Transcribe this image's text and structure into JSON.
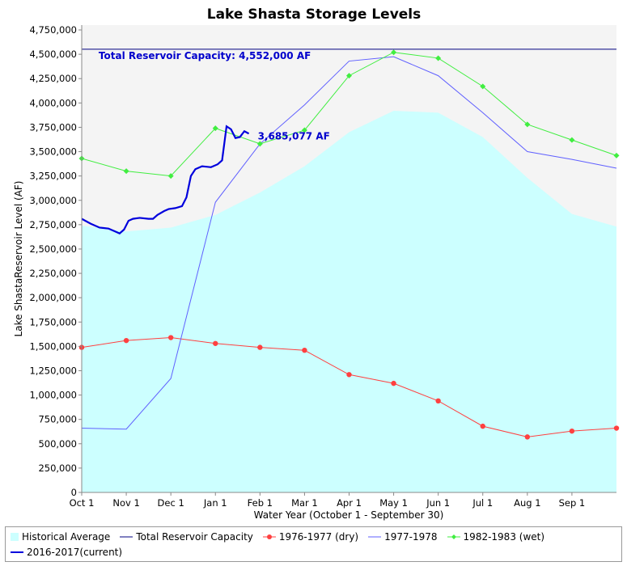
{
  "chart_data": {
    "type": "line",
    "title": "Lake Shasta Storage Levels",
    "xlabel": "Water Year (October 1 - September 30)",
    "ylabel": "Lake ShastaReservoir Level (AF)",
    "ylim": [
      0,
      4800000
    ],
    "xlim": [
      0,
      12
    ],
    "x_ticks": [
      {
        "label": "Oct 1",
        "x": 0
      },
      {
        "label": "Nov 1",
        "x": 1
      },
      {
        "label": "Dec 1",
        "x": 2
      },
      {
        "label": "Jan 1",
        "x": 3
      },
      {
        "label": "Feb 1",
        "x": 4
      },
      {
        "label": "Mar 1",
        "x": 5
      },
      {
        "label": "Apr 1",
        "x": 6
      },
      {
        "label": "May 1",
        "x": 7
      },
      {
        "label": "Jun 1",
        "x": 8
      },
      {
        "label": "Jul 1",
        "x": 9
      },
      {
        "label": "Aug 1",
        "x": 10
      },
      {
        "label": "Sep 1",
        "x": 11
      }
    ],
    "y_ticks": [
      {
        "label": "0",
        "v": 0
      },
      {
        "label": "250,000",
        "v": 250000
      },
      {
        "label": "500,000",
        "v": 500000
      },
      {
        "label": "750,000",
        "v": 750000
      },
      {
        "label": "1,000,000",
        "v": 1000000
      },
      {
        "label": "1,250,000",
        "v": 1250000
      },
      {
        "label": "1,500,000",
        "v": 1500000
      },
      {
        "label": "1,750,000",
        "v": 1750000
      },
      {
        "label": "2,000,000",
        "v": 2000000
      },
      {
        "label": "2,250,000",
        "v": 2250000
      },
      {
        "label": "2,500,000",
        "v": 2500000
      },
      {
        "label": "2,750,000",
        "v": 2750000
      },
      {
        "label": "3,000,000",
        "v": 3000000
      },
      {
        "label": "3,250,000",
        "v": 3250000
      },
      {
        "label": "3,500,000",
        "v": 3500000
      },
      {
        "label": "3,750,000",
        "v": 3750000
      },
      {
        "label": "4,000,000",
        "v": 4000000
      },
      {
        "label": "4,250,000",
        "v": 4250000
      },
      {
        "label": "4,500,000",
        "v": 4500000
      },
      {
        "label": "4,750,000",
        "v": 4750000
      }
    ],
    "grid": false,
    "legend_position": "bottom",
    "annotations": [
      {
        "text": "Total Reservoir Capacity: 4,552,000 AF",
        "x": 0.38,
        "y": 4450000
      },
      {
        "text": "3,685,077 AF",
        "x": 3.95,
        "y": 3625000
      }
    ],
    "series": [
      {
        "name": "Historical Average",
        "kind": "area",
        "color": "#ccffff",
        "points": [
          [
            0,
            2740000
          ],
          [
            1,
            2680000
          ],
          [
            2,
            2720000
          ],
          [
            3,
            2850000
          ],
          [
            4,
            3080000
          ],
          [
            5,
            3350000
          ],
          [
            6,
            3700000
          ],
          [
            7,
            3920000
          ],
          [
            8,
            3900000
          ],
          [
            9,
            3650000
          ],
          [
            10,
            3230000
          ],
          [
            11,
            2860000
          ],
          [
            12,
            2730000
          ]
        ]
      },
      {
        "name": "Total Reservoir Capacity",
        "kind": "line",
        "color": "#000080",
        "points": [
          [
            0,
            4552000
          ],
          [
            12,
            4552000
          ]
        ]
      },
      {
        "name": "1976-1977 (dry)",
        "kind": "line-markers",
        "color": "#ff4040",
        "points": [
          [
            0,
            1490000
          ],
          [
            1,
            1560000
          ],
          [
            2,
            1590000
          ],
          [
            3,
            1530000
          ],
          [
            4,
            1490000
          ],
          [
            5,
            1460000
          ],
          [
            6,
            1210000
          ],
          [
            7,
            1120000
          ],
          [
            8,
            940000
          ],
          [
            9,
            680000
          ],
          [
            10,
            570000
          ],
          [
            11,
            630000
          ],
          [
            12,
            660000
          ]
        ]
      },
      {
        "name": "1977-1978",
        "kind": "line",
        "color": "#6060ff",
        "points": [
          [
            0,
            660000
          ],
          [
            1,
            650000
          ],
          [
            2,
            1170000
          ],
          [
            3,
            2980000
          ],
          [
            4,
            3580000
          ],
          [
            5,
            3980000
          ],
          [
            6,
            4430000
          ],
          [
            7,
            4475000
          ],
          [
            8,
            4280000
          ],
          [
            9,
            3900000
          ],
          [
            10,
            3500000
          ],
          [
            11,
            3420000
          ],
          [
            12,
            3330000
          ]
        ]
      },
      {
        "name": "1982-1983 (wet)",
        "kind": "line-markers",
        "color": "#40ee40",
        "points": [
          [
            0,
            3430000
          ],
          [
            1,
            3300000
          ],
          [
            2,
            3250000
          ],
          [
            3,
            3740000
          ],
          [
            4,
            3580000
          ],
          [
            5,
            3720000
          ],
          [
            6,
            4280000
          ],
          [
            7,
            4520000
          ],
          [
            8,
            4460000
          ],
          [
            9,
            4170000
          ],
          [
            10,
            3780000
          ],
          [
            11,
            3620000
          ],
          [
            12,
            3460000
          ]
        ]
      },
      {
        "name": "2016-2017(current)",
        "kind": "line",
        "color": "#0000dd",
        "points": [
          [
            0,
            2810000
          ],
          [
            0.2,
            2760000
          ],
          [
            0.4,
            2720000
          ],
          [
            0.6,
            2710000
          ],
          [
            0.75,
            2680000
          ],
          [
            0.85,
            2660000
          ],
          [
            0.95,
            2700000
          ],
          [
            1.05,
            2790000
          ],
          [
            1.15,
            2810000
          ],
          [
            1.3,
            2820000
          ],
          [
            1.5,
            2810000
          ],
          [
            1.6,
            2810000
          ],
          [
            1.7,
            2850000
          ],
          [
            1.85,
            2890000
          ],
          [
            1.95,
            2910000
          ],
          [
            2.1,
            2920000
          ],
          [
            2.25,
            2940000
          ],
          [
            2.35,
            3030000
          ],
          [
            2.45,
            3250000
          ],
          [
            2.55,
            3320000
          ],
          [
            2.7,
            3350000
          ],
          [
            2.9,
            3340000
          ],
          [
            3.05,
            3370000
          ],
          [
            3.15,
            3410000
          ],
          [
            3.25,
            3760000
          ],
          [
            3.35,
            3730000
          ],
          [
            3.45,
            3640000
          ],
          [
            3.55,
            3650000
          ],
          [
            3.65,
            3710000
          ],
          [
            3.75,
            3685077
          ]
        ]
      }
    ]
  }
}
